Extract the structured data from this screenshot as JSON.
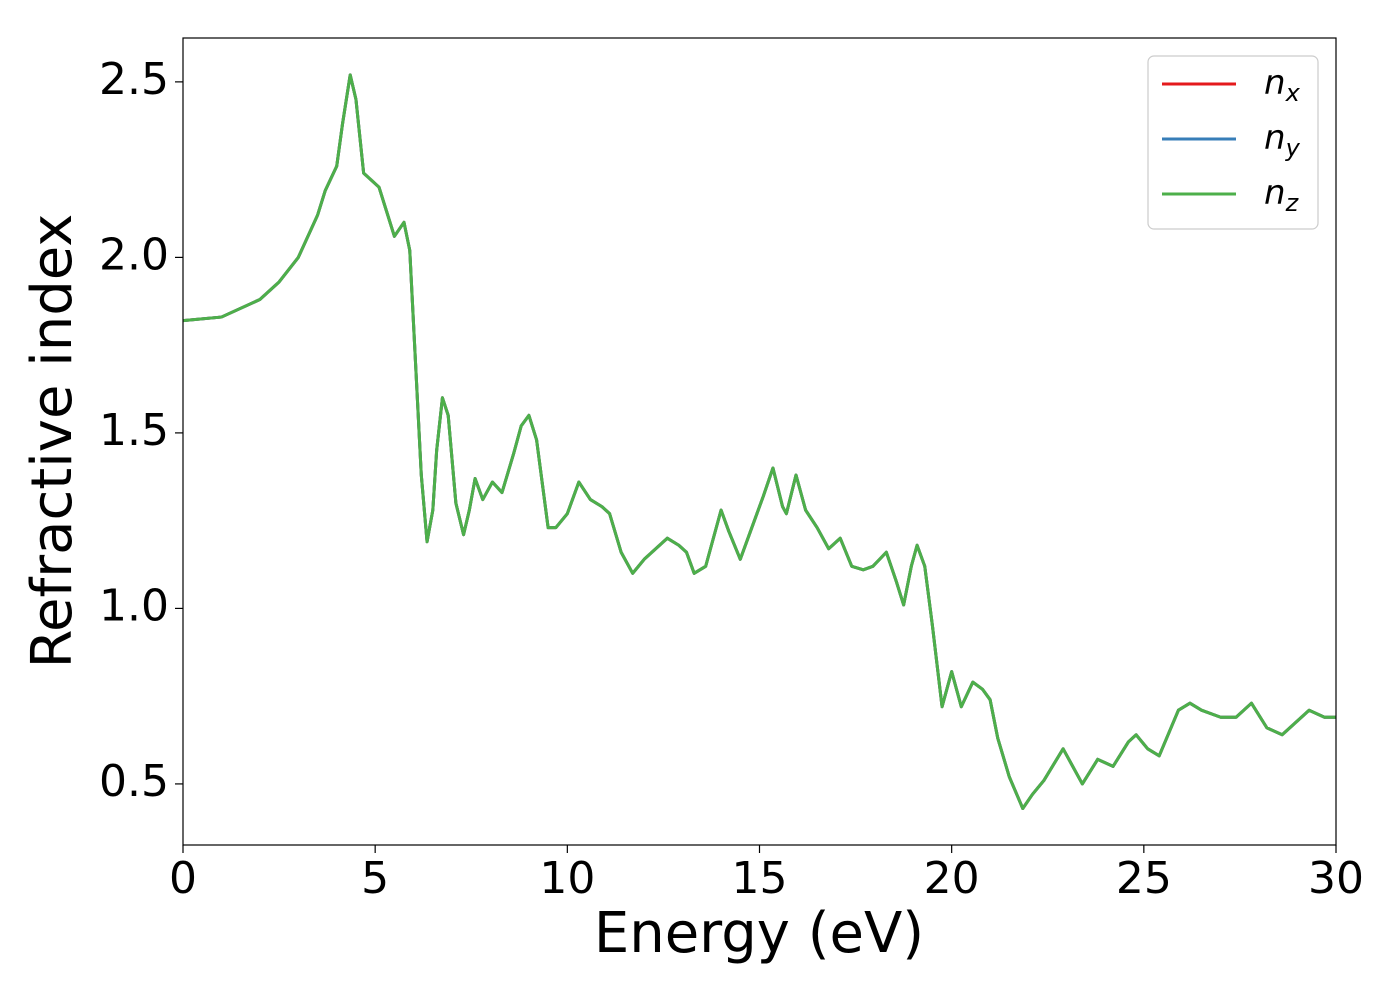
{
  "chart_data": {
    "type": "line",
    "xlabel": "Energy (eV)",
    "ylabel": "Refractive index",
    "x": [
      0,
      1,
      2,
      2.5,
      3,
      3.5,
      3.7,
      4.0,
      4.15,
      4.35,
      4.5,
      4.7,
      4.9,
      5.1,
      5.3,
      5.5,
      5.75,
      5.9,
      6.05,
      6.2,
      6.35,
      6.5,
      6.6,
      6.75,
      6.9,
      7.1,
      7.3,
      7.45,
      7.6,
      7.8,
      8.05,
      8.3,
      8.6,
      8.8,
      9.0,
      9.2,
      9.5,
      9.7,
      10.0,
      10.3,
      10.6,
      10.9,
      11.1,
      11.4,
      11.7,
      12.0,
      12.3,
      12.6,
      12.9,
      13.1,
      13.3,
      13.6,
      14.0,
      14.2,
      14.5,
      14.8,
      15.1,
      15.35,
      15.6,
      15.7,
      15.95,
      16.2,
      16.5,
      16.8,
      17.1,
      17.4,
      17.7,
      17.95,
      18.3,
      18.55,
      18.75,
      18.95,
      19.1,
      19.3,
      19.5,
      19.75,
      20.0,
      20.25,
      20.55,
      20.8,
      21.0,
      21.2,
      21.5,
      21.85,
      22.1,
      22.4,
      22.9,
      23.1,
      23.4,
      23.8,
      24.2,
      24.6,
      24.8,
      25.1,
      25.4,
      25.9,
      26.2,
      26.5,
      27.0,
      27.4,
      27.8,
      28.2,
      28.6,
      29.3,
      29.7,
      30.0
    ],
    "series": [
      {
        "name": "nx",
        "color": "#e41a1c",
        "values": [
          1.82,
          1.83,
          1.88,
          1.93,
          2.0,
          2.12,
          2.19,
          2.26,
          2.38,
          2.52,
          2.45,
          2.24,
          2.22,
          2.2,
          2.13,
          2.06,
          2.1,
          2.02,
          1.7,
          1.38,
          1.19,
          1.28,
          1.45,
          1.6,
          1.55,
          1.3,
          1.21,
          1.28,
          1.37,
          1.31,
          1.36,
          1.33,
          1.44,
          1.52,
          1.55,
          1.48,
          1.23,
          1.23,
          1.27,
          1.36,
          1.31,
          1.29,
          1.27,
          1.16,
          1.1,
          1.14,
          1.17,
          1.2,
          1.18,
          1.16,
          1.1,
          1.12,
          1.28,
          1.22,
          1.14,
          1.23,
          1.32,
          1.4,
          1.29,
          1.27,
          1.38,
          1.28,
          1.23,
          1.17,
          1.2,
          1.12,
          1.11,
          1.12,
          1.16,
          1.08,
          1.01,
          1.12,
          1.18,
          1.12,
          0.95,
          0.72,
          0.82,
          0.72,
          0.79,
          0.77,
          0.74,
          0.63,
          0.52,
          0.43,
          0.47,
          0.51,
          0.6,
          0.56,
          0.5,
          0.57,
          0.55,
          0.62,
          0.64,
          0.6,
          0.58,
          0.71,
          0.73,
          0.71,
          0.69,
          0.69,
          0.73,
          0.66,
          0.64,
          0.71,
          0.69,
          0.69
        ]
      },
      {
        "name": "ny",
        "color": "#377eb8",
        "values": [
          1.82,
          1.83,
          1.88,
          1.93,
          2.0,
          2.12,
          2.19,
          2.26,
          2.38,
          2.52,
          2.45,
          2.24,
          2.22,
          2.2,
          2.13,
          2.06,
          2.1,
          2.02,
          1.7,
          1.38,
          1.19,
          1.28,
          1.45,
          1.6,
          1.55,
          1.3,
          1.21,
          1.28,
          1.37,
          1.31,
          1.36,
          1.33,
          1.44,
          1.52,
          1.55,
          1.48,
          1.23,
          1.23,
          1.27,
          1.36,
          1.31,
          1.29,
          1.27,
          1.16,
          1.1,
          1.14,
          1.17,
          1.2,
          1.18,
          1.16,
          1.1,
          1.12,
          1.28,
          1.22,
          1.14,
          1.23,
          1.32,
          1.4,
          1.29,
          1.27,
          1.38,
          1.28,
          1.23,
          1.17,
          1.2,
          1.12,
          1.11,
          1.12,
          1.16,
          1.08,
          1.01,
          1.12,
          1.18,
          1.12,
          0.95,
          0.72,
          0.82,
          0.72,
          0.79,
          0.77,
          0.74,
          0.63,
          0.52,
          0.43,
          0.47,
          0.51,
          0.6,
          0.56,
          0.5,
          0.57,
          0.55,
          0.62,
          0.64,
          0.6,
          0.58,
          0.71,
          0.73,
          0.71,
          0.69,
          0.69,
          0.73,
          0.66,
          0.64,
          0.71,
          0.69,
          0.69
        ]
      },
      {
        "name": "nz",
        "color": "#4daf4a",
        "values": [
          1.82,
          1.83,
          1.88,
          1.93,
          2.0,
          2.12,
          2.19,
          2.26,
          2.38,
          2.52,
          2.45,
          2.24,
          2.22,
          2.2,
          2.13,
          2.06,
          2.1,
          2.02,
          1.7,
          1.38,
          1.19,
          1.28,
          1.45,
          1.6,
          1.55,
          1.3,
          1.21,
          1.28,
          1.37,
          1.31,
          1.36,
          1.33,
          1.44,
          1.52,
          1.55,
          1.48,
          1.23,
          1.23,
          1.27,
          1.36,
          1.31,
          1.29,
          1.27,
          1.16,
          1.1,
          1.14,
          1.17,
          1.2,
          1.18,
          1.16,
          1.1,
          1.12,
          1.28,
          1.22,
          1.14,
          1.23,
          1.32,
          1.4,
          1.29,
          1.27,
          1.38,
          1.28,
          1.23,
          1.17,
          1.2,
          1.12,
          1.11,
          1.12,
          1.16,
          1.08,
          1.01,
          1.12,
          1.18,
          1.12,
          0.95,
          0.72,
          0.82,
          0.72,
          0.79,
          0.77,
          0.74,
          0.63,
          0.52,
          0.43,
          0.47,
          0.51,
          0.6,
          0.56,
          0.5,
          0.57,
          0.55,
          0.62,
          0.64,
          0.6,
          0.58,
          0.71,
          0.73,
          0.71,
          0.69,
          0.69,
          0.73,
          0.66,
          0.64,
          0.71,
          0.69,
          0.69
        ]
      }
    ],
    "xlim": [
      0,
      30
    ],
    "xticks": [
      0,
      5,
      10,
      15,
      20,
      25,
      30
    ],
    "ylim": [
      0.326,
      2.625
    ],
    "yticks": [
      0.5,
      {
        "value": 1.0,
        "label": "1.0"
      },
      1.5,
      {
        "value": 2.0,
        "label": "2.0"
      },
      2.5
    ],
    "grid": false,
    "legend": "upper right"
  }
}
